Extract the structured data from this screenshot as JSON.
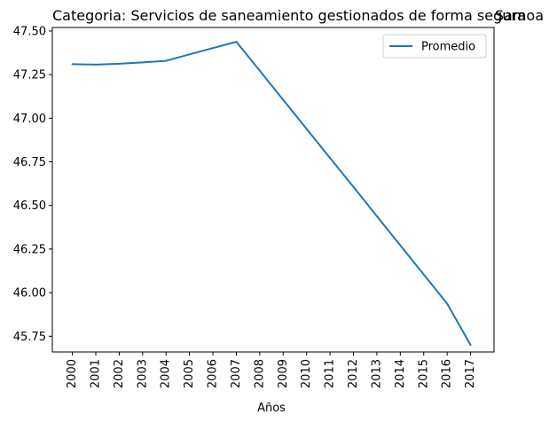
{
  "chart_data": {
    "type": "line",
    "title": "Categoria: Servicios de saneamiento gestionados de forma segura",
    "title_right": "Samoa",
    "xlabel": "Años",
    "ylabel": "",
    "categories": [
      "2000",
      "2001",
      "2002",
      "2003",
      "2004",
      "2005",
      "2006",
      "2007",
      "2008",
      "2009",
      "2010",
      "2011",
      "2012",
      "2013",
      "2014",
      "2015",
      "2016",
      "2017"
    ],
    "series": [
      {
        "name": "Promedio",
        "color": "#1f77b4",
        "values": [
          47.31,
          47.307,
          47.312,
          47.32,
          47.329,
          47.366,
          47.402,
          47.438,
          47.272,
          47.105,
          46.939,
          46.772,
          46.606,
          46.438,
          46.271,
          46.104,
          45.937,
          45.7
        ]
      }
    ],
    "ylim": [
      45.66,
      47.52
    ],
    "yticks": [
      "45.75",
      "46.00",
      "46.25",
      "46.50",
      "46.75",
      "47.00",
      "47.25",
      "47.50"
    ],
    "grid": false,
    "legend_position": "upper-right"
  }
}
